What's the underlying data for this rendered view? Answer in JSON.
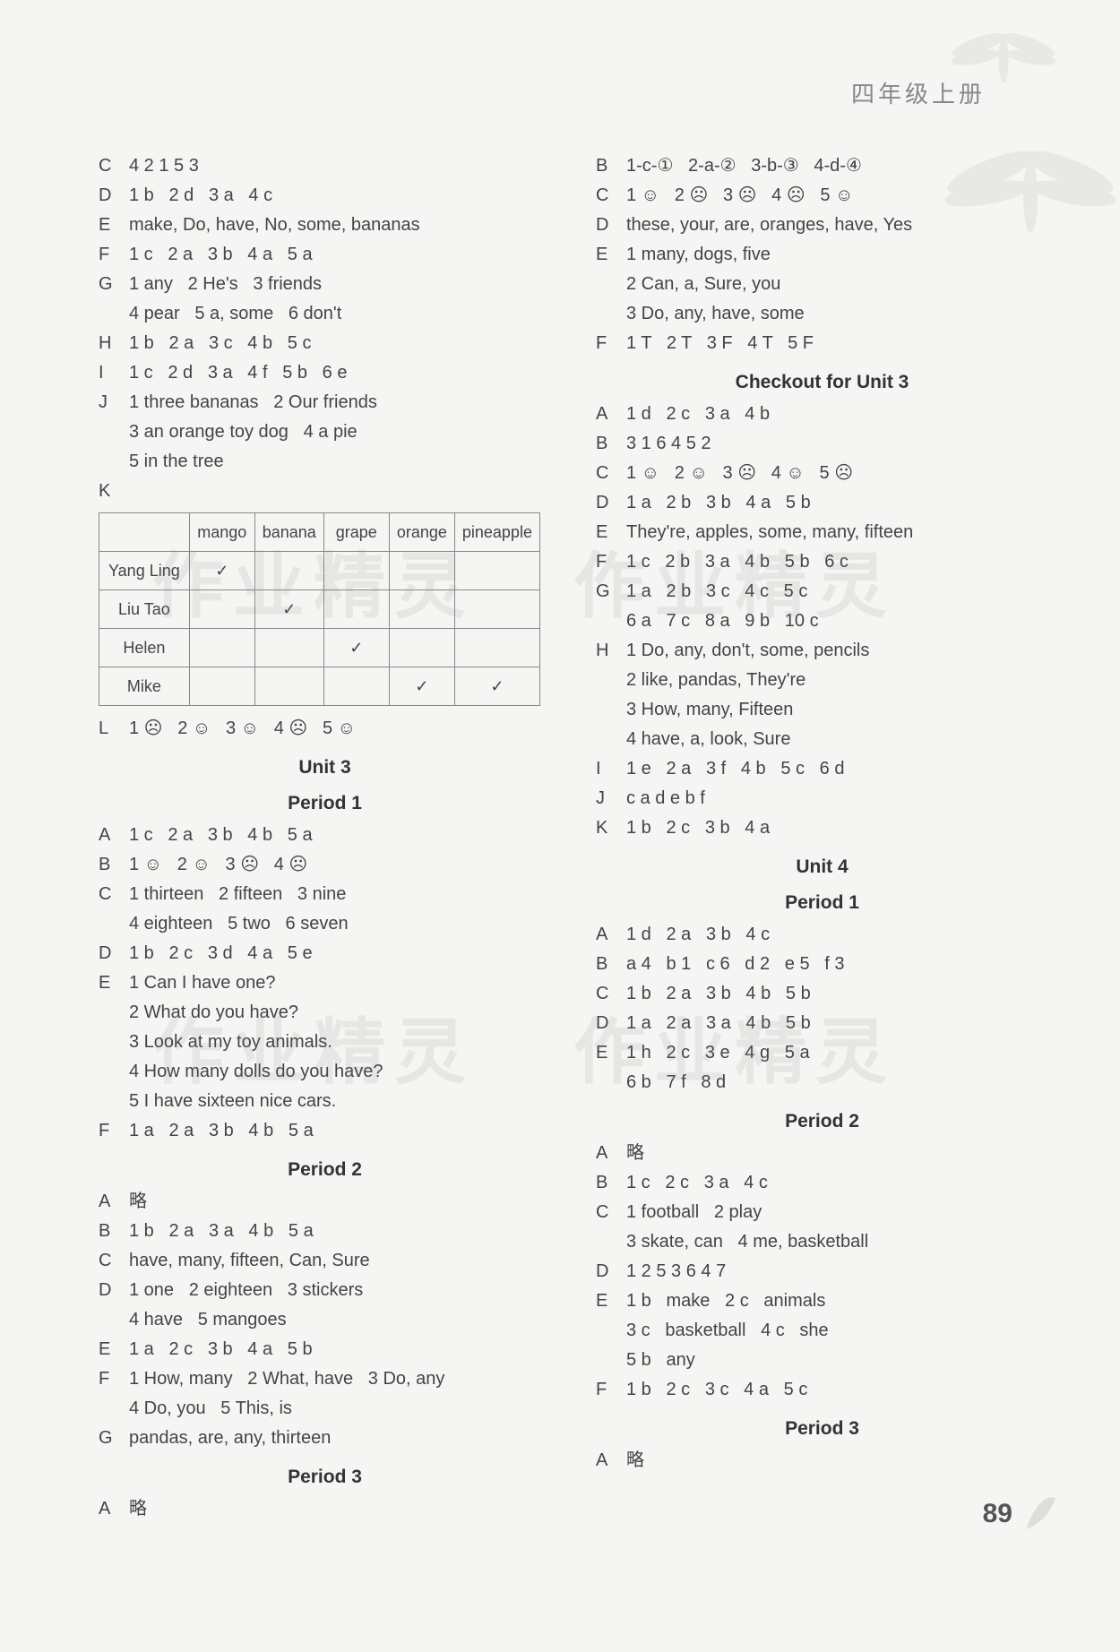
{
  "header": "四年级上册",
  "page_number": "89",
  "watermark_text": "作业精灵",
  "fruit_table": {
    "headers": [
      "",
      "mango",
      "banana",
      "grape",
      "orange",
      "pineapple"
    ],
    "rows": [
      {
        "name": "Yang Ling",
        "checks": [
          "✓",
          "",
          "",
          "",
          ""
        ]
      },
      {
        "name": "Liu Tao",
        "checks": [
          "",
          "✓",
          "",
          "",
          ""
        ]
      },
      {
        "name": "Helen",
        "checks": [
          "",
          "",
          "✓",
          "",
          ""
        ]
      },
      {
        "name": "Mike",
        "checks": [
          "",
          "",
          "",
          "✓",
          "✓"
        ]
      }
    ]
  },
  "left": [
    {
      "l": "C",
      "t": "4 2 1 5 3"
    },
    {
      "l": "D",
      "t": "1 b   2 d   3 a   4 c"
    },
    {
      "l": "E",
      "t": "make, Do, have, No, some, bananas"
    },
    {
      "l": "F",
      "t": "1 c   2 a   3 b   4 a   5 a"
    },
    {
      "l": "G",
      "t": "1 any   2 He's   3 friends"
    },
    {
      "l": "",
      "t": "4 pear   5 a, some   6 don't"
    },
    {
      "l": "H",
      "t": "1 b   2 a   3 c   4 b   5 c"
    },
    {
      "l": "I",
      "t": "1 c   2 d   3 a   4 f   5 b   6 e"
    },
    {
      "l": "J",
      "t": "1 three bananas   2 Our friends"
    },
    {
      "l": "",
      "t": "3 an orange toy dog   4 a pie"
    },
    {
      "l": "",
      "t": "5 in the tree"
    },
    {
      "l": "K",
      "t": ""
    },
    {
      "type": "table"
    },
    {
      "l": "L",
      "t": "1 ☹   2 ☺   3 ☺   4 ☹   5 ☺"
    },
    {
      "type": "heading",
      "t": "Unit 3"
    },
    {
      "type": "heading",
      "t": "Period 1"
    },
    {
      "l": "A",
      "t": "1 c   2 a   3 b   4 b   5 a"
    },
    {
      "l": "B",
      "t": "1 ☺   2 ☺   3 ☹   4 ☹"
    },
    {
      "l": "C",
      "t": "1 thirteen   2 fifteen   3 nine"
    },
    {
      "l": "",
      "t": "4 eighteen   5 two   6 seven"
    },
    {
      "l": "D",
      "t": "1 b   2 c   3 d   4 a   5 e"
    },
    {
      "l": "E",
      "t": "1 Can I have one?"
    },
    {
      "l": "",
      "t": "2 What do you have?"
    },
    {
      "l": "",
      "t": "3 Look at my toy animals."
    },
    {
      "l": "",
      "t": "4 How many dolls do you have?"
    },
    {
      "l": "",
      "t": "5 I have sixteen nice cars."
    },
    {
      "l": "F",
      "t": "1 a   2 a   3 b   4 b   5 a"
    },
    {
      "type": "heading",
      "t": "Period 2"
    },
    {
      "l": "A",
      "t": "略"
    },
    {
      "l": "B",
      "t": "1 b   2 a   3 a   4 b   5 a"
    },
    {
      "l": "C",
      "t": "have, many, fifteen, Can, Sure"
    },
    {
      "l": "D",
      "t": "1 one   2 eighteen   3 stickers"
    },
    {
      "l": "",
      "t": "4 have   5 mangoes"
    },
    {
      "l": "E",
      "t": "1 a   2 c   3 b   4 a   5 b"
    },
    {
      "l": "F",
      "t": "1 How, many   2 What, have   3 Do, any"
    },
    {
      "l": "",
      "t": "4 Do, you   5 This, is"
    },
    {
      "l": "G",
      "t": "pandas, are, any, thirteen"
    },
    {
      "type": "heading",
      "t": "Period 3"
    },
    {
      "l": "A",
      "t": "略"
    }
  ],
  "right": [
    {
      "l": "B",
      "t": "1-c-①   2-a-②   3-b-③   4-d-④"
    },
    {
      "l": "C",
      "t": "1 ☺   2 ☹   3 ☹   4 ☹   5 ☺"
    },
    {
      "l": "D",
      "t": "these, your, are, oranges, have, Yes"
    },
    {
      "l": "E",
      "t": "1 many, dogs, five"
    },
    {
      "l": "",
      "t": "2 Can, a, Sure, you"
    },
    {
      "l": "",
      "t": "3 Do, any, have, some"
    },
    {
      "l": "F",
      "t": "1 T   2 T   3 F   4 T   5 F"
    },
    {
      "type": "heading",
      "t": "Checkout for Unit 3"
    },
    {
      "l": "A",
      "t": "1 d   2 c   3 a   4 b"
    },
    {
      "l": "B",
      "t": "3 1 6 4 5 2"
    },
    {
      "l": "C",
      "t": "1 ☺   2 ☺   3 ☹   4 ☺   5 ☹"
    },
    {
      "l": "D",
      "t": "1 a   2 b   3 b   4 a   5 b"
    },
    {
      "l": "E",
      "t": "They're, apples, some, many, fifteen"
    },
    {
      "l": "F",
      "t": "1 c   2 b   3 a   4 b   5 b   6 c"
    },
    {
      "l": "G",
      "t": "1 a   2 b   3 c   4 c   5 c"
    },
    {
      "l": "",
      "t": "6 a   7 c   8 a   9 b   10 c"
    },
    {
      "l": "H",
      "t": "1 Do, any, don't, some, pencils"
    },
    {
      "l": "",
      "t": "2 like, pandas, They're"
    },
    {
      "l": "",
      "t": "3 How, many, Fifteen"
    },
    {
      "l": "",
      "t": "4 have, a, look, Sure"
    },
    {
      "l": "I",
      "t": "1 e   2 a   3 f   4 b   5 c   6 d"
    },
    {
      "l": "J",
      "t": "c a d e b f"
    },
    {
      "l": "K",
      "t": "1 b   2 c   3 b   4 a"
    },
    {
      "type": "heading",
      "t": "Unit 4"
    },
    {
      "type": "heading",
      "t": "Period 1"
    },
    {
      "l": "A",
      "t": "1 d   2 a   3 b   4 c"
    },
    {
      "l": "B",
      "t": "a 4   b 1   c 6   d 2   e 5   f 3"
    },
    {
      "l": "C",
      "t": "1 b   2 a   3 b   4 b   5 b"
    },
    {
      "l": "D",
      "t": "1 a   2 a   3 a   4 b   5 b"
    },
    {
      "l": "E",
      "t": "1 h   2 c   3 e   4 g   5 a"
    },
    {
      "l": "",
      "t": "6 b   7 f   8 d"
    },
    {
      "type": "heading",
      "t": "Period 2"
    },
    {
      "l": "A",
      "t": "略"
    },
    {
      "l": "B",
      "t": "1 c   2 c   3 a   4 c"
    },
    {
      "l": "C",
      "t": "1 football   2 play"
    },
    {
      "l": "",
      "t": "3 skate, can   4 me, basketball"
    },
    {
      "l": "D",
      "t": "1 2 5 3 6 4 7"
    },
    {
      "l": "E",
      "t": "1 b   make   2 c   animals"
    },
    {
      "l": "",
      "t": "3 c   basketball   4 c   she"
    },
    {
      "l": "",
      "t": "5 b   any"
    },
    {
      "l": "F",
      "t": "1 b   2 c   3 c   4 a   5 c"
    },
    {
      "type": "heading",
      "t": "Period 3"
    },
    {
      "l": "A",
      "t": "略"
    }
  ]
}
